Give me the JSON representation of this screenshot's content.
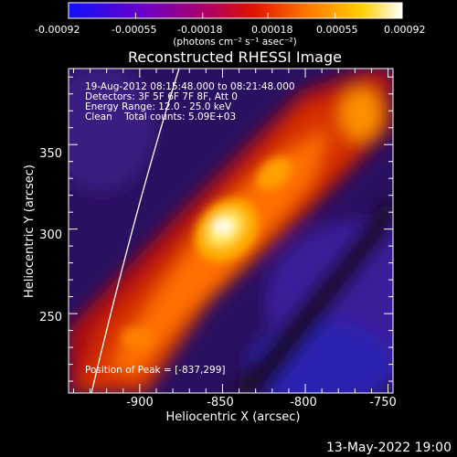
{
  "chart_data": {
    "type": "heatmap",
    "title": "Reconstructed RHESSI Image",
    "colorbar": {
      "unit_label": "(photons cm⁻² s⁻¹ asec⁻²)",
      "ticks": [
        "-0.00092",
        "-0.00055",
        "-0.00018",
        "0.00018",
        "0.00055",
        "0.00092"
      ],
      "range": [
        -0.00092,
        0.00092
      ],
      "colors": [
        "#1010ff",
        "#6a00c8",
        "#b00060",
        "#e01000",
        "#ff7a00",
        "#ffd000",
        "#ffffff"
      ]
    },
    "info_lines": [
      "19-Aug-2012 08:15:48.000 to 08:21:48.000",
      "Detectors: 3F 5F 6F 7F 8F, Att 0",
      "Energy Range: 12.0 - 25.0 keV",
      "Clean    Total counts: 5.09E+03"
    ],
    "peak_label": "Position of Peak = [-837,299]",
    "peak": [
      -837,
      299
    ],
    "xlabel": "Heliocentric X (arcsec)",
    "ylabel": "Heliocentric Y (arcsec)",
    "xticks": [
      "-900",
      "-850",
      "-800",
      "-750"
    ],
    "yticks": [
      "250",
      "300",
      "350"
    ],
    "xlim": [
      -943,
      -747
    ],
    "ylim": [
      203,
      395
    ],
    "footer_time": "13-May-2022 19:00"
  }
}
